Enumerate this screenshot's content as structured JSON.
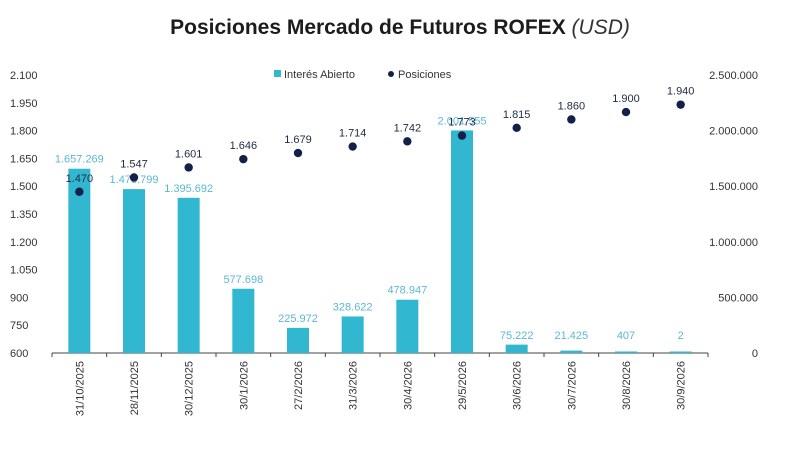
{
  "header": {
    "title": "Posiciones Mercado de Futuros ROFEX",
    "unit": "(USD)"
  },
  "colors": {
    "bar": "#31b7cf",
    "bar_label": "#5bb8d4",
    "point": "#14204a",
    "point_label": "#1f2a44",
    "axis": "#444444"
  },
  "legend": {
    "bar": "Interés Abierto",
    "point": "Posiciones"
  },
  "chart_data": {
    "type": "bar",
    "title": "Posiciones Mercado de Futuros ROFEX",
    "categories": [
      "31/10/2025",
      "28/11/2025",
      "30/12/2025",
      "30/1/2026",
      "27/2/2026",
      "31/3/2026",
      "30/4/2026",
      "29/5/2026",
      "30/6/2026",
      "30/7/2026",
      "30/8/2026",
      "30/9/2026"
    ],
    "series": [
      {
        "name": "Interés Abierto",
        "type": "bar",
        "axis": "right",
        "values": [
          1657269,
          1473799,
          1395692,
          577698,
          225972,
          328622,
          478947,
          2001555,
          75222,
          21425,
          407,
          2
        ],
        "labels": [
          "1.657.269",
          "1.473.799",
          "1.395.692",
          "577.698",
          "225.972",
          "328.622",
          "478.947",
          "2.001.555",
          "75.222",
          "21.425",
          "407",
          "2"
        ]
      },
      {
        "name": "Posiciones",
        "type": "scatter",
        "axis": "left",
        "values": [
          1470,
          1547,
          1601,
          1646,
          1679,
          1714,
          1742,
          1773,
          1815,
          1860,
          1900,
          1940
        ],
        "labels": [
          "1.470",
          "1.547",
          "1.601",
          "1.646",
          "1.679",
          "1.714",
          "1.742",
          "1.773",
          "1.815",
          "1.860",
          "1.900",
          "1.940"
        ]
      }
    ],
    "y_left": {
      "min": 600,
      "max": 2100,
      "step": 150,
      "tick_labels": [
        "600",
        "750",
        "900",
        "1.050",
        "1.200",
        "1.350",
        "1.500",
        "1.650",
        "1.800",
        "1.950",
        "2.100"
      ]
    },
    "y_right": {
      "min": 0,
      "max": 2500000,
      "step": 500000,
      "tick_labels": [
        "0",
        "500.000",
        "1.000.000",
        "1.500.000",
        "2.000.000",
        "2.500.000"
      ]
    },
    "grid": false,
    "legend_position": "top-center"
  }
}
